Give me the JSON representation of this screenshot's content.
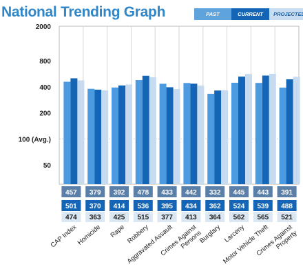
{
  "title": "National Trending Graph",
  "legend": {
    "past": "PAST",
    "current": "CURRENT",
    "projected": "PROJECTED"
  },
  "colors": {
    "title": "#2f86c8",
    "past": "#4c9ae0",
    "current": "#1565b7",
    "projected": "#c7dbf0",
    "cell_past": "#5a7fa8",
    "cell_current": "#1565b7",
    "cell_projected": "#dbe7f3",
    "grid": "#c8c8c8"
  },
  "chart_data": {
    "type": "bar",
    "y_scale": "log",
    "ylim": [
      30,
      2000
    ],
    "y_ticks": [
      {
        "value": 2000,
        "label": "2000"
      },
      {
        "value": 800,
        "label": "800"
      },
      {
        "value": 400,
        "label": "400"
      },
      {
        "value": 200,
        "label": "200"
      },
      {
        "value": 100,
        "label": "100 (Avg.)"
      },
      {
        "value": 50,
        "label": "50"
      }
    ],
    "reference_line": {
      "value": 100
    },
    "categories": [
      "CAP Index",
      "Homicide",
      "Rape",
      "Robbery",
      "Aggravated Assault",
      "Crimes Against Persons",
      "Burglary",
      "Larceny",
      "Motor Vehicle Theft",
      "Crimes Against Property"
    ],
    "category_labels": [
      [
        "CAP Index"
      ],
      [
        "Homicide"
      ],
      [
        "Rape"
      ],
      [
        "Robbery"
      ],
      [
        "Aggravated Assault"
      ],
      [
        "Crimes Against",
        "Persons"
      ],
      [
        "Burglary"
      ],
      [
        "Larceny"
      ],
      [
        "Motor Vehicle Theft"
      ],
      [
        "Crimes Against",
        "Property"
      ]
    ],
    "series": [
      {
        "name": "PAST",
        "values": [
          457,
          379,
          392,
          478,
          433,
          442,
          332,
          445,
          443,
          391
        ]
      },
      {
        "name": "CURRENT",
        "values": [
          501,
          370,
          414,
          536,
          395,
          434,
          362,
          524,
          539,
          488
        ]
      },
      {
        "name": "PROJECTED",
        "values": [
          474,
          363,
          425,
          515,
          377,
          413,
          364,
          562,
          565,
          521
        ]
      }
    ]
  }
}
